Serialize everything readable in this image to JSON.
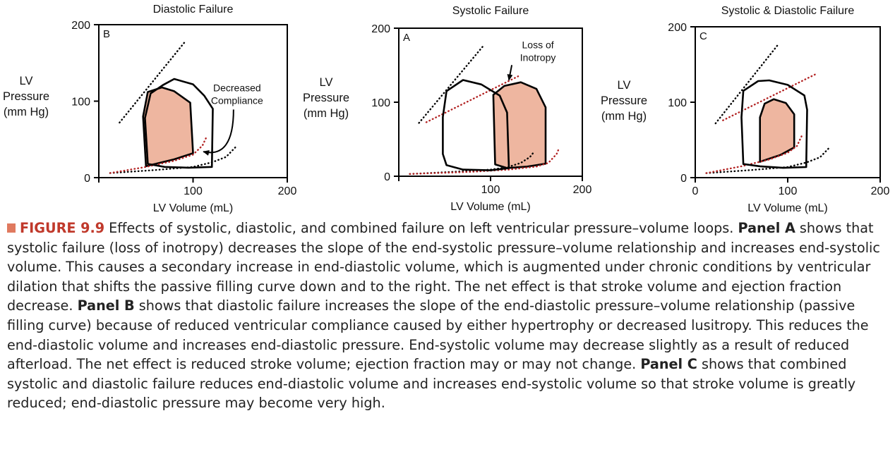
{
  "colors": {
    "loop_fill": "#eeb6a0",
    "espvr_red": "#b22222",
    "axis": "#000000",
    "figure_label": "#c0392b",
    "figure_marker": "#e07a5f"
  },
  "chart_data": [
    {
      "type": "line",
      "title": "Diastolic Failure",
      "panel_label": "B",
      "xlabel": "LV Volume (mL)",
      "ylabel": "LV\nPressure\n(mm Hg)",
      "xlim": [
        0,
        200
      ],
      "ylim": [
        0,
        200
      ],
      "xticks": [
        0,
        100,
        200
      ],
      "yticks": [
        0,
        100,
        200
      ],
      "show_xtick_0": false,
      "annotation": {
        "text": "Decreased\nCompliance",
        "x": 113,
        "y": 113,
        "arrow_to": [
          108,
          34
        ]
      },
      "series": [
        {
          "role": "normal_loop",
          "style": "solid",
          "fill": false,
          "points": [
            [
              52,
              18
            ],
            [
              49,
              78
            ],
            [
              55,
              110
            ],
            [
              68,
              121
            ],
            [
              80,
              129
            ],
            [
              100,
              122
            ],
            [
              112,
              107
            ],
            [
              121,
              90
            ],
            [
              120,
              14
            ],
            [
              95,
              13
            ],
            [
              70,
              14
            ],
            [
              52,
              18
            ]
          ]
        },
        {
          "role": "failure_loop",
          "style": "solid",
          "fill": true,
          "points": [
            [
              50,
              15
            ],
            [
              47,
              80
            ],
            [
              52,
              112
            ],
            [
              67,
              118
            ],
            [
              80,
              113
            ],
            [
              97,
              98
            ],
            [
              100,
              32
            ],
            [
              80,
              24
            ],
            [
              60,
              18
            ],
            [
              50,
              15
            ]
          ]
        },
        {
          "role": "normal_espvr",
          "style": "dotted",
          "color": "black",
          "points": [
            [
              22,
              72
            ],
            [
              91,
              177
            ]
          ]
        },
        {
          "role": "normal_edpvr",
          "style": "dotted",
          "color": "black",
          "points": [
            [
              12,
              6
            ],
            [
              60,
              10
            ],
            [
              100,
              14
            ],
            [
              120,
              20
            ],
            [
              135,
              27
            ],
            [
              146,
              41
            ]
          ]
        },
        {
          "role": "failure_edpvr",
          "style": "dotted",
          "color": "red",
          "points": [
            [
              12,
              6
            ],
            [
              50,
              14
            ],
            [
              80,
              22
            ],
            [
              100,
              30
            ],
            [
              110,
              42
            ],
            [
              115,
              55
            ]
          ]
        }
      ]
    },
    {
      "type": "line",
      "title": "Systolic Failure",
      "panel_label": "A",
      "xlabel": "LV Volume (mL)",
      "ylabel": "LV\nPressure\n(mm Hg)",
      "xlim": [
        0,
        200
      ],
      "ylim": [
        0,
        200
      ],
      "xticks": [
        0,
        100,
        200
      ],
      "yticks": [
        0,
        100,
        200
      ],
      "show_xtick_0": false,
      "annotation": {
        "text": "Loss of\nInotropy",
        "x": 117,
        "y": 173,
        "arrow_to": [
          120,
          128
        ]
      },
      "series": [
        {
          "role": "normal_loop",
          "style": "solid",
          "fill": false,
          "points": [
            [
              52,
              15
            ],
            [
              48,
              30
            ],
            [
              48,
              80
            ],
            [
              52,
              115
            ],
            [
              70,
              130
            ],
            [
              90,
              124
            ],
            [
              110,
              109
            ],
            [
              118,
              86
            ],
            [
              120,
              11
            ],
            [
              100,
              8
            ],
            [
              70,
              9
            ],
            [
              52,
              15
            ]
          ]
        },
        {
          "role": "failure_loop",
          "style": "solid",
          "fill": true,
          "points": [
            [
              118,
              11
            ],
            [
              105,
              16
            ],
            [
              103,
              110
            ],
            [
              115,
              122
            ],
            [
              133,
              127
            ],
            [
              150,
              118
            ],
            [
              160,
              93
            ],
            [
              160,
              17
            ],
            [
              140,
              13
            ],
            [
              118,
              11
            ]
          ]
        },
        {
          "role": "normal_espvr",
          "style": "dotted",
          "color": "black",
          "points": [
            [
              22,
              72
            ],
            [
              92,
              176
            ]
          ]
        },
        {
          "role": "failure_espvr",
          "style": "dotted",
          "color": "red",
          "points": [
            [
              30,
              73
            ],
            [
              130,
              135
            ]
          ]
        },
        {
          "role": "normal_edpvr",
          "style": "dotted",
          "color": "black",
          "points": [
            [
              12,
              3
            ],
            [
              60,
              6
            ],
            [
              100,
              9
            ],
            [
              118,
              12
            ],
            [
              133,
              18
            ],
            [
              143,
              26
            ],
            [
              148,
              34
            ]
          ]
        },
        {
          "role": "failure_edpvr",
          "style": "dotted",
          "color": "red",
          "points": [
            [
              12,
              3
            ],
            [
              80,
              6
            ],
            [
              120,
              9
            ],
            [
              150,
              13
            ],
            [
              163,
              18
            ],
            [
              172,
              30
            ],
            [
              175,
              39
            ]
          ]
        }
      ]
    },
    {
      "type": "line",
      "title": "Systolic & Diastolic Failure",
      "panel_label": "C",
      "xlabel": "LV Volume (mL)",
      "ylabel": "LV\nPressure\n(mm Hg)",
      "xlim": [
        0,
        200
      ],
      "ylim": [
        0,
        200
      ],
      "xticks": [
        0,
        100,
        200
      ],
      "yticks": [
        0,
        100,
        200
      ],
      "show_xtick_0": true,
      "series": [
        {
          "role": "normal_loop",
          "style": "solid",
          "fill": false,
          "points": [
            [
              52,
              18
            ],
            [
              50,
              80
            ],
            [
              52,
              115
            ],
            [
              68,
              128
            ],
            [
              80,
              129
            ],
            [
              100,
              123
            ],
            [
              118,
              109
            ],
            [
              121,
              90
            ],
            [
              120,
              14
            ],
            [
              95,
              13
            ],
            [
              70,
              15
            ],
            [
              52,
              18
            ]
          ]
        },
        {
          "role": "failure_loop",
          "style": "solid",
          "fill": true,
          "points": [
            [
              70,
              21
            ],
            [
              70,
              80
            ],
            [
              75,
              98
            ],
            [
              85,
              104
            ],
            [
              98,
              99
            ],
            [
              107,
              84
            ],
            [
              107,
              40
            ],
            [
              92,
              30
            ],
            [
              70,
              21
            ]
          ]
        },
        {
          "role": "normal_espvr",
          "style": "dotted",
          "color": "black",
          "points": [
            [
              22,
              72
            ],
            [
              90,
              177
            ]
          ]
        },
        {
          "role": "failure_espvr",
          "style": "dotted",
          "color": "red",
          "points": [
            [
              30,
              76
            ],
            [
              130,
              137
            ]
          ]
        },
        {
          "role": "normal_edpvr",
          "style": "dotted",
          "color": "black",
          "points": [
            [
              12,
              6
            ],
            [
              60,
              10
            ],
            [
              100,
              14
            ],
            [
              120,
              20
            ],
            [
              135,
              27
            ],
            [
              146,
              41
            ]
          ]
        },
        {
          "role": "failure_edpvr",
          "style": "dotted",
          "color": "red",
          "points": [
            [
              12,
              6
            ],
            [
              50,
              15
            ],
            [
              80,
              24
            ],
            [
              100,
              33
            ],
            [
              110,
              42
            ],
            [
              115,
              55
            ]
          ]
        }
      ]
    }
  ],
  "caption": {
    "label": "FIGURE 9.9",
    "intro": "Effects of systolic, diastolic, and combined failure on left ventricular pressure–volume loops.",
    "panel_a_label": "Panel A",
    "panel_a_text": "shows that systolic failure (loss of inotropy) decreases the slope of the end-systolic pressure–volume relationship and increases end-systolic volume. This causes a secondary increase in end-diastolic volume, which is augmented under chronic conditions by ventricular dilation that shifts the passive filling curve down and to the right. The net effect is that stroke volume and ejection fraction decrease.",
    "panel_b_label": "Panel B",
    "panel_b_text": "shows that diastolic failure increases the slope of the end-diastolic pressure–volume relationship (passive filling curve) because of reduced ventricular compliance caused by either hypertrophy or decreased lusitropy. This reduces the end-diastolic volume and increases end-diastolic pressure. End-systolic volume may decrease slightly as a result of reduced afterload. The net effect is reduced stroke volume; ejection fraction may or may not change.",
    "panel_c_label": "Panel C",
    "panel_c_text": "shows that combined systolic and diastolic failure reduces end-diastolic volume and increases end-systolic volume so that stroke volume is greatly reduced; end-diastolic pressure may become very high."
  }
}
